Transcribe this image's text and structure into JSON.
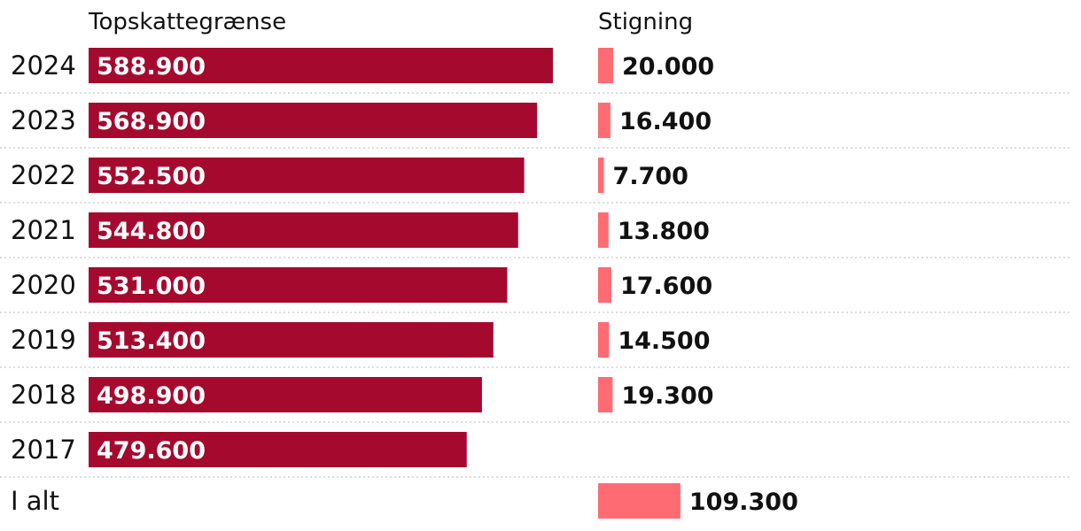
{
  "chart_data": {
    "type": "bar",
    "columns": {
      "left_header": "Topskattegrænse",
      "right_header": "Stigning"
    },
    "rows": [
      {
        "year": "2024",
        "threshold": 588900,
        "threshold_label": "588.900",
        "increase": 20000,
        "increase_label": "20.000"
      },
      {
        "year": "2023",
        "threshold": 568900,
        "threshold_label": "568.900",
        "increase": 16400,
        "increase_label": "16.400"
      },
      {
        "year": "2022",
        "threshold": 552500,
        "threshold_label": "552.500",
        "increase": 7700,
        "increase_label": "7.700"
      },
      {
        "year": "2021",
        "threshold": 544800,
        "threshold_label": "544.800",
        "increase": 13800,
        "increase_label": "13.800"
      },
      {
        "year": "2020",
        "threshold": 531000,
        "threshold_label": "531.000",
        "increase": 17600,
        "increase_label": "17.600"
      },
      {
        "year": "2019",
        "threshold": 513400,
        "threshold_label": "513.400",
        "increase": 14500,
        "increase_label": "14.500"
      },
      {
        "year": "2018",
        "threshold": 498900,
        "threshold_label": "498.900",
        "increase": 19300,
        "increase_label": "19.300"
      },
      {
        "year": "2017",
        "threshold": 479600,
        "threshold_label": "479.600",
        "increase": null,
        "increase_label": null
      }
    ],
    "total": {
      "label": "I alt",
      "increase": 109300,
      "increase_label": "109.300"
    },
    "colors": {
      "threshold_bar": "#a50a2e",
      "increase_bar": "#ff6b73"
    }
  }
}
